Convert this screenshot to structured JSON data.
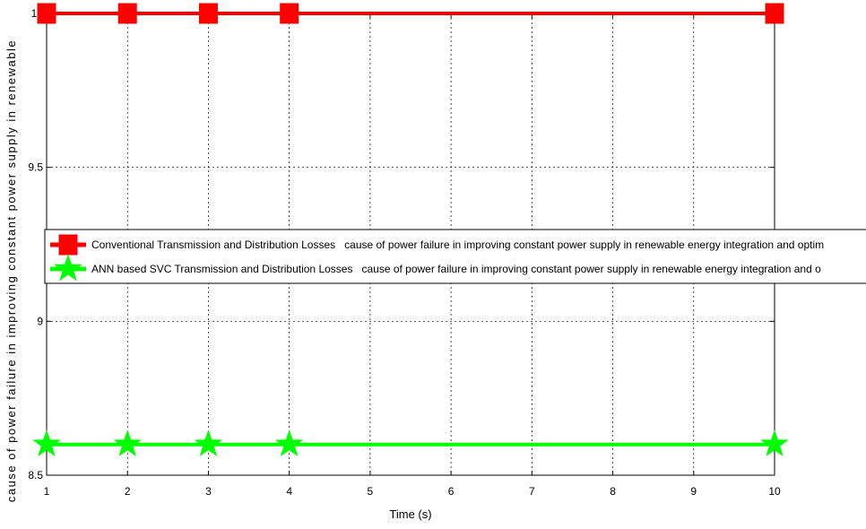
{
  "chart_data": {
    "type": "line",
    "xlabel": "Time (s)",
    "ylabel": "cause of power failure in improving constant power supply in renewable",
    "xlim": [
      1,
      10
    ],
    "ylim": [
      8.5,
      10
    ],
    "xticks": [
      1,
      2,
      3,
      4,
      5,
      6,
      7,
      8,
      9,
      10
    ],
    "yticks": [
      8.5,
      9,
      9.5,
      10
    ],
    "ytick_labels": [
      "8.5",
      "9",
      "9.5",
      "10"
    ],
    "grid": true,
    "legend_position": "middle",
    "series": [
      {
        "name": "Conventional Transmission and Distribution Losses   cause of power failure in improving constant power supply in renewable energy integration and optim",
        "color": "#ff0000",
        "marker": "square",
        "x": [
          1,
          2,
          3,
          4,
          10
        ],
        "y": [
          10,
          10,
          10,
          10,
          10
        ]
      },
      {
        "name": "ANN based SVC Transmission and Distribution Losses   cause of power failure in improving constant power supply in renewable energy integration and o",
        "color": "#00ff00",
        "marker": "star",
        "x": [
          1,
          2,
          3,
          4,
          10
        ],
        "y": [
          8.6,
          8.6,
          8.6,
          8.6,
          8.6
        ]
      }
    ]
  }
}
